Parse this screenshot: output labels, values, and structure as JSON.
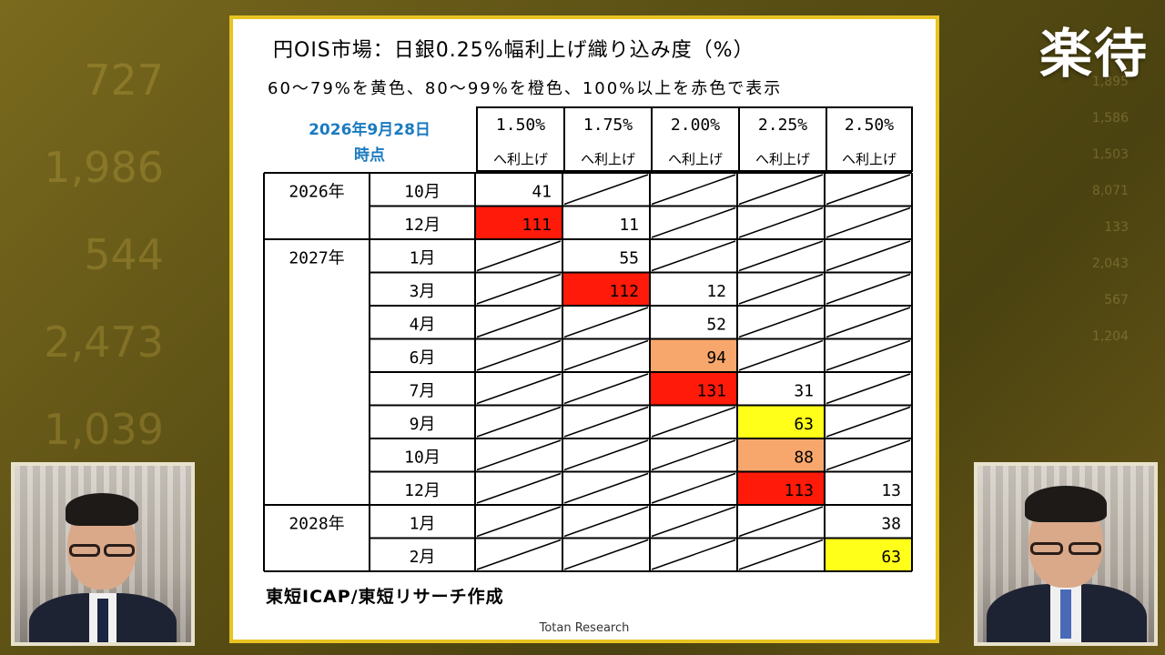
{
  "background_numbers": [
    "727",
    "1,986",
    "544",
    "2,473",
    "1,039"
  ],
  "background_numbers_right": [
    "1,895",
    "1,586",
    "1,503",
    "8,071",
    "133",
    "2,043",
    "567",
    "1,204"
  ],
  "logo": "楽待",
  "card": {
    "title": "円OIS市場：日銀0.25%幅利上げ織り込み度（%）",
    "subtitle": "60～79%を黄色、80～99%を橙色、100%以上を赤色で表示",
    "as_of_line1": "2026年9月28日",
    "as_of_line2": "時点",
    "rate_headers": [
      {
        "rate": "1.50%",
        "sub": "へ利上げ"
      },
      {
        "rate": "1.75%",
        "sub": "へ利上げ"
      },
      {
        "rate": "2.00%",
        "sub": "へ利上げ"
      },
      {
        "rate": "2.25%",
        "sub": "へ利上げ"
      },
      {
        "rate": "2.50%",
        "sub": "へ利上げ"
      }
    ],
    "rows": [
      {
        "year": "2026年",
        "month": "10月",
        "cells": [
          "41",
          null,
          null,
          null,
          null
        ],
        "colors": [
          "",
          "",
          "",
          "",
          ""
        ]
      },
      {
        "year": "",
        "month": "12月",
        "cells": [
          "111",
          "11",
          null,
          null,
          null
        ],
        "colors": [
          "red",
          "",
          "",
          "",
          ""
        ]
      },
      {
        "year": "2027年",
        "month": "1月",
        "cells": [
          null,
          "55",
          null,
          null,
          null
        ],
        "colors": [
          "",
          "",
          "",
          "",
          ""
        ]
      },
      {
        "year": "",
        "month": "3月",
        "cells": [
          null,
          "112",
          "12",
          null,
          null
        ],
        "colors": [
          "",
          "red",
          "",
          "",
          ""
        ]
      },
      {
        "year": "",
        "month": "4月",
        "cells": [
          null,
          null,
          "52",
          null,
          null
        ],
        "colors": [
          "",
          "",
          "",
          "",
          ""
        ]
      },
      {
        "year": "",
        "month": "6月",
        "cells": [
          null,
          null,
          "94",
          null,
          null
        ],
        "colors": [
          "",
          "",
          "orange",
          "",
          ""
        ]
      },
      {
        "year": "",
        "month": "7月",
        "cells": [
          null,
          null,
          "131",
          "31",
          null
        ],
        "colors": [
          "",
          "",
          "red",
          "",
          ""
        ]
      },
      {
        "year": "",
        "month": "9月",
        "cells": [
          null,
          null,
          null,
          "63",
          null
        ],
        "colors": [
          "",
          "",
          "",
          "yellow",
          ""
        ]
      },
      {
        "year": "",
        "month": "10月",
        "cells": [
          null,
          null,
          null,
          "88",
          null
        ],
        "colors": [
          "",
          "",
          "",
          "orange",
          ""
        ]
      },
      {
        "year": "",
        "month": "12月",
        "cells": [
          null,
          null,
          null,
          "113",
          "13"
        ],
        "colors": [
          "",
          "",
          "",
          "red",
          ""
        ]
      },
      {
        "year": "2028年",
        "month": "1月",
        "cells": [
          null,
          null,
          null,
          null,
          "38"
        ],
        "colors": [
          "",
          "",
          "",
          "",
          ""
        ]
      },
      {
        "year": "",
        "month": "2月",
        "cells": [
          null,
          null,
          null,
          null,
          "63"
        ],
        "colors": [
          "",
          "",
          "",
          "",
          "yellow"
        ]
      }
    ],
    "colors": {
      "red": "#ff1a0a",
      "orange": "#f7a76c",
      "yellow": "#ffff1a"
    },
    "footer": "東短ICAP/東短リサーチ作成",
    "brand": "Totan Research"
  }
}
